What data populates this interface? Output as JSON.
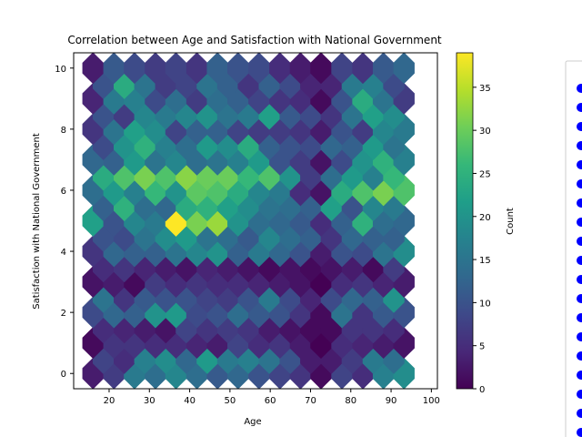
{
  "chart_data": {
    "type": "heatmap",
    "subtype": "hexbin",
    "title": "Correlation between Age and Satisfaction with National Government",
    "xlabel": "Age",
    "ylabel": "Satisfaction with National Government",
    "xlim": [
      11.2,
      101.5
    ],
    "ylim": [
      -0.5,
      10.5
    ],
    "xticks": [
      20,
      30,
      40,
      50,
      60,
      70,
      80,
      90,
      100
    ],
    "yticks": [
      0,
      2,
      4,
      6,
      8,
      10
    ],
    "colormap": "viridis",
    "colorbar": {
      "label": "Count",
      "min": 0,
      "max": 39,
      "ticks": [
        0,
        5,
        10,
        15,
        20,
        25,
        30,
        35
      ]
    },
    "hex_grid": {
      "x_centers_even_rows": [
        16.0,
        21.2,
        26.3,
        31.5,
        36.6,
        41.8,
        46.9,
        52.0,
        57.2,
        62.4,
        67.5,
        72.6,
        77.8,
        83.0,
        88.1,
        93.2
      ],
      "y_step": 0.5
    },
    "counts": [
      [
        3,
        8,
        7,
        5,
        16,
        17,
        14,
        19,
        18,
        13,
        14,
        21,
        11,
        16,
        13,
        17,
        10,
        15,
        8,
        10,
        6,
        3,
        1
      ],
      [
        1,
        5,
        6,
        4,
        6,
        3,
        5,
        2,
        5,
        8,
        4,
        6,
        3,
        7,
        8,
        6,
        5,
        3,
        6,
        2,
        3,
        1,
        0
      ],
      [
        9,
        15,
        13,
        6,
        12,
        11,
        20,
        10,
        21,
        10,
        9,
        8,
        10,
        7,
        14,
        10,
        11,
        16,
        10,
        9,
        6,
        4,
        1
      ],
      [
        2,
        5,
        3,
        6,
        1,
        4,
        7,
        3,
        5,
        2,
        6,
        4,
        5,
        3,
        5,
        2,
        4,
        1,
        3,
        2,
        2,
        1,
        0
      ],
      [
        6,
        10,
        13,
        9,
        12,
        15,
        12,
        19,
        15,
        21,
        18,
        15,
        20,
        14,
        12,
        11,
        16,
        18,
        13,
        14,
        10,
        12,
        3
      ],
      [
        22,
        12,
        10,
        25,
        18,
        14,
        16,
        13,
        39,
        24,
        31,
        25,
        33,
        22,
        20,
        19,
        14,
        15,
        13,
        14,
        11,
        12,
        5
      ],
      [
        14,
        24,
        21,
        28,
        17,
        31,
        26,
        28,
        20,
        32,
        29,
        30,
        28,
        30,
        24,
        26,
        18,
        28,
        16,
        20,
        5,
        7,
        2
      ],
      [
        13,
        9,
        12,
        20,
        21,
        25,
        15,
        17,
        18,
        14,
        14,
        21,
        15,
        19,
        17,
        24,
        21,
        12,
        10,
        10,
        7,
        9,
        2
      ],
      [
        6,
        10,
        15,
        7,
        22,
        18,
        19,
        16,
        8,
        18,
        12,
        20,
        12,
        15,
        8,
        16,
        7,
        22,
        7,
        11,
        6,
        9,
        3
      ],
      [
        4,
        10,
        16,
        24,
        17,
        15,
        9,
        7,
        14,
        8,
        7,
        15,
        14,
        12,
        12,
        6,
        8,
        12,
        6,
        9,
        5,
        4,
        1
      ],
      [
        3,
        8,
        11,
        6,
        9,
        11,
        7,
        13,
        8,
        10,
        6,
        9,
        12,
        5,
        10,
        4,
        9,
        6,
        5,
        4,
        3,
        2,
        1
      ]
    ]
  },
  "legend_items": [
    "",
    "",
    "",
    "",
    "",
    "",
    "",
    "",
    "",
    "",
    "",
    "",
    "",
    "",
    "",
    "",
    "",
    "",
    "",
    ""
  ],
  "legend_marker_color": "#0000ff"
}
